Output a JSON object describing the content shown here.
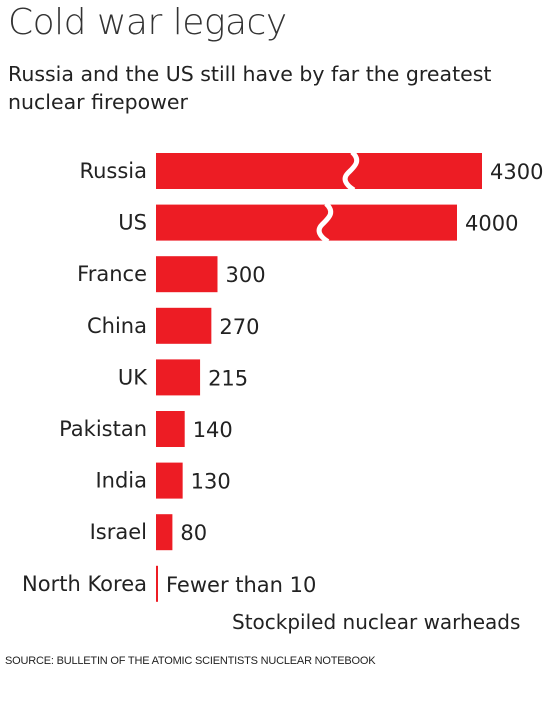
{
  "title": "Cold war legacy",
  "subtitle": "Russia and the US still have by far the greatest nuclear firepower",
  "xlabel": "Stockpiled nuclear warheads",
  "source": "SOURCE: BULLETIN OF THE ATOMIC SCIENTISTS NUCLEAR NOTEBOOK",
  "colors": {
    "bar": "#ed1c24",
    "text": "#222222"
  },
  "chart_data": {
    "type": "bar",
    "orientation": "horizontal",
    "axis_break": true,
    "categories": [
      "Russia",
      "US",
      "France",
      "China",
      "UK",
      "Pakistan",
      "India",
      "Israel",
      "North Korea"
    ],
    "values": [
      4300,
      4000,
      300,
      270,
      215,
      140,
      130,
      80,
      10
    ],
    "data_labels": [
      "4300",
      "4000",
      "300",
      "270",
      "215",
      "140",
      "130",
      "80",
      "Fewer than 10"
    ],
    "broken_bars": [
      "Russia",
      "US"
    ],
    "xlabel": "Stockpiled nuclear warheads"
  }
}
